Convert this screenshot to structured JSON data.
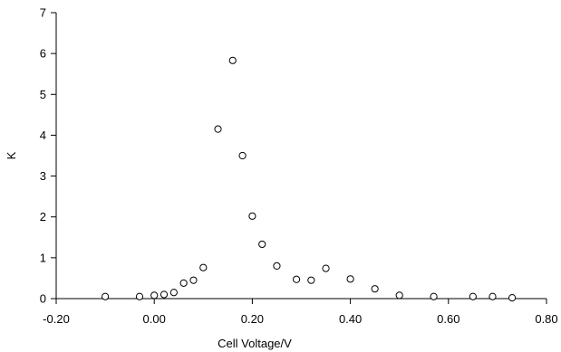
{
  "chart_data": {
    "type": "scatter",
    "title": "",
    "xlabel": "Cell Voltage/V",
    "ylabel": "K",
    "xlim": [
      -0.2,
      0.8
    ],
    "ylim": [
      0,
      7
    ],
    "grid": false,
    "x_ticks": [
      -0.2,
      0.0,
      0.2,
      0.4,
      0.6,
      0.8
    ],
    "x_tick_labels": [
      "-0.20",
      "0.00",
      "0.20",
      "0.40",
      "0.60",
      "0.80"
    ],
    "y_ticks": [
      0,
      1,
      2,
      3,
      4,
      5,
      6,
      7
    ],
    "y_tick_labels": [
      "0",
      "1",
      "2",
      "3",
      "4",
      "5",
      "6",
      "7"
    ],
    "marker": "open-circle",
    "colors": {
      "marker_stroke": "#000000",
      "marker_fill": "#ffffff",
      "axis": "#000000"
    },
    "series": [
      {
        "x": [
          -0.1,
          -0.03,
          0.0,
          0.02,
          0.04,
          0.06,
          0.08,
          0.1,
          0.13,
          0.16,
          0.18,
          0.2,
          0.22,
          0.25,
          0.29,
          0.32,
          0.35,
          0.4,
          0.45,
          0.5,
          0.57,
          0.65,
          0.69,
          0.73
        ],
        "y": [
          0.05,
          0.05,
          0.08,
          0.1,
          0.15,
          0.38,
          0.45,
          0.76,
          4.15,
          5.83,
          3.5,
          2.02,
          1.33,
          0.8,
          0.47,
          0.45,
          0.74,
          0.48,
          0.24,
          0.08,
          0.05,
          0.05,
          0.05,
          0.02
        ]
      }
    ]
  }
}
